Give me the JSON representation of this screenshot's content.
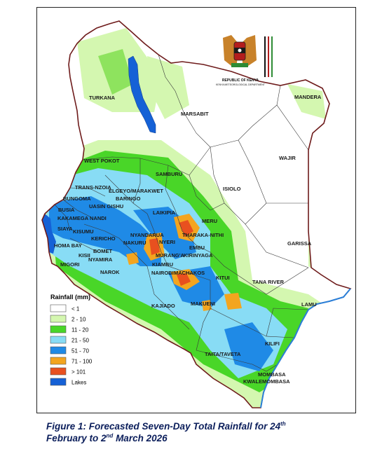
{
  "crest": {
    "line1": "REPUBLIC OF KENYA",
    "line2": "KENYA METEOROLOGICAL DEPARTMENT"
  },
  "legend": {
    "title": "Rainfall (mm)",
    "items": [
      {
        "label": "< 1",
        "color": "#ffffff"
      },
      {
        "label": "2 - 10",
        "color": "#d4f7b0"
      },
      {
        "label": "11 - 20",
        "color": "#49d628"
      },
      {
        "label": "21 - 50",
        "color": "#88dcf5"
      },
      {
        "label": "51 - 70",
        "color": "#1f8ae6"
      },
      {
        "label": "71 - 100",
        "color": "#f3a51f"
      },
      {
        "label": "> 101",
        "color": "#e8501f"
      },
      {
        "label": "Lakes",
        "color": "#1561d6"
      }
    ]
  },
  "counties": [
    "TURKANA",
    "MARSABIT",
    "MANDERA",
    "WAJIR",
    "WEST POKOT",
    "SAMBURU",
    "ISIOLO",
    "TRANS-NZOIA",
    "ELGEYO/MARAKWET",
    "BUNGOMA",
    "BARINGO",
    "UASIN GISHU",
    "BUSIA",
    "KAKAMEGA",
    "NANDI",
    "LAIKIPIA",
    "MERU",
    "SIAYA",
    "KISUMU",
    "NYANDARUA",
    "THARAKA-NITHI",
    "KERICHO",
    "NAKURU",
    "NYERI",
    "HOMA BAY",
    "EMBU",
    "GARISSA",
    "BOMET",
    "KISII",
    "MURANG'A",
    "KIRINYAGA",
    "NYAMIRA",
    "MIGORI",
    "KIAMBU",
    "NAROK",
    "NAIROBI",
    "MACHAKOS",
    "KITUI",
    "TANA RIVER",
    "LAMU",
    "KAJIADO",
    "MAKUENI",
    "KILIFI",
    "TAITA/TAVETA",
    "MOMBASA",
    "KWALE",
    "MOMBASA"
  ],
  "caption": {
    "line1_pre": "Figure 1: Forecasted Seven-Day Total Rainfall for 24",
    "line1_sup": "th",
    "line2_pre": "February to 2",
    "line2_sup": "nd",
    "line2_post": " March 2026"
  }
}
